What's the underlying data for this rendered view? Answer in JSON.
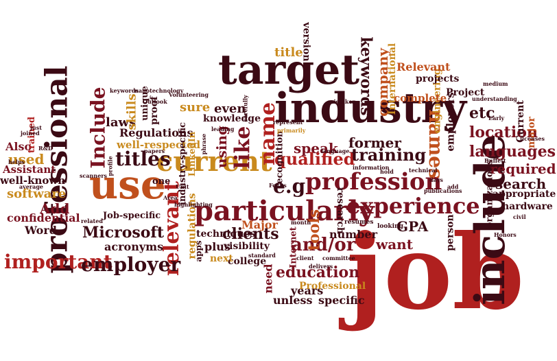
{
  "colors": {
    "dark_maroon": "#3b0a14",
    "maroon": "#7a1220",
    "red": "#b0201f",
    "rust": "#c0501d",
    "orange": "#c98a1e",
    "brown": "#8a4a1a"
  },
  "words": [
    {
      "id": "job",
      "text": "job",
      "color": "red"
    },
    {
      "id": "include-v",
      "text": "include",
      "color": "dark_maroon"
    },
    {
      "id": "industry",
      "text": "industry",
      "color": "dark_maroon"
    },
    {
      "id": "target",
      "text": "target",
      "color": "dark_maroon"
    },
    {
      "id": "professional",
      "text": "professional",
      "color": "dark_maroon"
    },
    {
      "id": "use",
      "text": "use",
      "color": "rust"
    },
    {
      "id": "current",
      "text": "current",
      "color": "orange"
    },
    {
      "id": "particularly",
      "text": "particularly",
      "color": "maroon"
    },
    {
      "id": "profession",
      "text": "profession",
      "color": "maroon"
    },
    {
      "id": "experience",
      "text": "experience",
      "color": "maroon"
    },
    {
      "id": "relevant-v",
      "text": "relevant",
      "color": "red"
    },
    {
      "id": "Include-v",
      "text": "Include",
      "color": "maroon"
    },
    {
      "id": "names",
      "text": "names",
      "color": "rust"
    },
    {
      "id": "like",
      "text": "like",
      "color": "maroon"
    },
    {
      "id": "name",
      "text": "name",
      "color": "red"
    },
    {
      "id": "titles",
      "text": "titles",
      "color": "dark_maroon"
    },
    {
      "id": "important",
      "text": "important",
      "color": "red"
    },
    {
      "id": "employer",
      "text": "employer",
      "color": "dark_maroon"
    },
    {
      "id": "qualified",
      "text": "qualified",
      "color": "red"
    },
    {
      "id": "training",
      "text": "training",
      "color": "dark_maroon"
    },
    {
      "id": "eg",
      "text": "e.g",
      "color": "dark_maroon"
    },
    {
      "id": "andor",
      "text": "and/or",
      "color": "maroon"
    },
    {
      "id": "education",
      "text": "education",
      "color": "maroon"
    },
    {
      "id": "tools",
      "text": "tools",
      "color": "rust"
    },
    {
      "id": "Microsoft",
      "text": "Microsoft",
      "color": "dark_maroon"
    },
    {
      "id": "clients",
      "text": "clients",
      "color": "dark_maroon"
    },
    {
      "id": "languages",
      "text": "languages",
      "color": "maroon"
    },
    {
      "id": "location",
      "text": "location",
      "color": "maroon"
    },
    {
      "id": "etc",
      "text": "etc",
      "color": "dark_maroon"
    },
    {
      "id": "required",
      "text": "required",
      "color": "maroon"
    },
    {
      "id": "search",
      "text": "search",
      "color": "dark_maroon"
    },
    {
      "id": "speak",
      "text": "speak",
      "color": "maroon"
    },
    {
      "id": "former",
      "text": "former",
      "color": "dark_maroon"
    },
    {
      "id": "keywords",
      "text": "keywords",
      "color": "dark_maroon"
    },
    {
      "id": "company",
      "text": "company",
      "color": "rust"
    },
    {
      "id": "Add",
      "text": "Add",
      "color": "maroon"
    },
    {
      "id": "used",
      "text": "used",
      "color": "orange"
    },
    {
      "id": "software",
      "text": "software",
      "color": "orange"
    },
    {
      "id": "confidential",
      "text": "confidential",
      "color": "maroon"
    },
    {
      "id": "Word",
      "text": "Word",
      "color": "dark_maroon"
    },
    {
      "id": "acronyms",
      "text": "acronyms",
      "color": "dark_maroon"
    },
    {
      "id": "Regulations",
      "text": "Regulations",
      "color": "dark_maroon"
    },
    {
      "id": "well-respected",
      "text": "well-respected",
      "color": "orange"
    },
    {
      "id": "laws",
      "text": "laws",
      "color": "dark_maroon"
    },
    {
      "id": "skills",
      "text": "skills",
      "color": "orange"
    },
    {
      "id": "sure",
      "text": "sure",
      "color": "orange"
    },
    {
      "id": "knowledge",
      "text": "knowledge",
      "color": "dark_maroon"
    },
    {
      "id": "even",
      "text": "even",
      "color": "dark_maroon"
    },
    {
      "id": "using",
      "text": "using",
      "color": "maroon"
    },
    {
      "id": "Major",
      "text": "Major",
      "color": "rust"
    },
    {
      "id": "techniques",
      "text": "techniques",
      "color": "dark_maroon"
    },
    {
      "id": "plus",
      "text": "plus",
      "color": "dark_maroon"
    },
    {
      "id": "visibility",
      "text": "visibility",
      "color": "dark_maroon"
    },
    {
      "id": "college",
      "text": "college",
      "color": "dark_maroon"
    },
    {
      "id": "next",
      "text": "next",
      "color": "orange"
    },
    {
      "id": "need",
      "text": "need",
      "color": "maroon"
    },
    {
      "id": "unless",
      "text": "unless",
      "color": "dark_maroon"
    },
    {
      "id": "years",
      "text": "years",
      "color": "dark_maroon"
    },
    {
      "id": "specific",
      "text": "specific",
      "color": "dark_maroon"
    },
    {
      "id": "Professional",
      "text": "Professional",
      "color": "orange"
    },
    {
      "id": "want",
      "text": "want",
      "color": "maroon"
    },
    {
      "id": "GPA",
      "text": "GPA",
      "color": "dark_maroon"
    },
    {
      "id": "number",
      "text": "number",
      "color": "dark_maroon"
    },
    {
      "id": "person",
      "text": "person",
      "color": "dark_maroon"
    },
    {
      "id": "hardware",
      "text": "hardware",
      "color": "dark_maroon"
    },
    {
      "id": "appropriate",
      "text": "appropriate",
      "color": "dark_maroon"
    },
    {
      "id": "organizations",
      "text": "organizations",
      "color": "dark_maroon"
    },
    {
      "id": "employers",
      "text": "employers",
      "color": "dark_maroon"
    },
    {
      "id": "engineering",
      "text": "engineering",
      "color": "orange"
    },
    {
      "id": "complete",
      "text": "complete",
      "color": "rust"
    },
    {
      "id": "projects",
      "text": "projects",
      "color": "dark_maroon"
    },
    {
      "id": "Project",
      "text": "Project",
      "color": "dark_maroon"
    },
    {
      "id": "Relevant",
      "text": "Relevant",
      "color": "rust"
    },
    {
      "id": "International",
      "text": "International",
      "color": "orange"
    },
    {
      "id": "title",
      "text": "title",
      "color": "orange"
    },
    {
      "id": "version",
      "text": "version",
      "color": "dark_maroon"
    },
    {
      "id": "Current",
      "text": "Current",
      "color": "dark_maroon"
    },
    {
      "id": "major",
      "text": "major",
      "color": "rust"
    },
    {
      "id": "Also",
      "text": "Also",
      "color": "maroon"
    },
    {
      "id": "Assistant",
      "text": "Assistant",
      "color": "maroon"
    },
    {
      "id": "well-known",
      "text": "well-known",
      "color": "dark_maroon"
    },
    {
      "id": "trained",
      "text": "trained",
      "color": "red"
    },
    {
      "id": "Job-specific",
      "text": "Job-specific",
      "color": "dark_maroon"
    },
    {
      "id": "industry-specific",
      "text": "industry-specific",
      "color": "dark_maroon"
    },
    {
      "id": "LinkedIn",
      "text": "LinkedIn",
      "color": "orange"
    },
    {
      "id": "regulations",
      "text": "regulations",
      "color": "orange"
    },
    {
      "id": "recognition",
      "text": "recognition",
      "color": "dark_maroon"
    },
    {
      "id": "research",
      "text": "research",
      "color": "dark_maroon"
    },
    {
      "id": "Internet",
      "text": "Internet",
      "color": "maroon"
    },
    {
      "id": "unique",
      "text": "unique",
      "color": "dark_maroon"
    },
    {
      "id": "proof",
      "text": "proof",
      "color": "dark_maroon"
    },
    {
      "id": "one",
      "text": "one",
      "color": "dark_maroon"
    },
    {
      "id": "apps",
      "text": "apps",
      "color": "dark_maroon"
    },
    {
      "id": "resumes",
      "text": "resumes",
      "color": "dark_maroon"
    },
    {
      "id": "looking",
      "text": "looking",
      "color": "dark_maroon"
    },
    {
      "id": "keywords2",
      "text": "keywords",
      "color": "dark_maroon"
    },
    {
      "id": "nanotechnology",
      "text": "nanotechnology",
      "color": "dark_maroon"
    },
    {
      "id": "Outlook",
      "text": "Outlook",
      "color": "dark_maroon"
    },
    {
      "id": "Volunteering",
      "text": "Volunteering",
      "color": "dark_maroon"
    },
    {
      "id": "carefully",
      "text": "carefully",
      "color": "dark_maroon"
    },
    {
      "id": "leading",
      "text": "leading",
      "color": "dark_maroon"
    },
    {
      "id": "phrase",
      "text": "phrase",
      "color": "dark_maroon"
    },
    {
      "id": "papers",
      "text": "papers",
      "color": "dark_maroon"
    },
    {
      "id": "profile",
      "text": "profile",
      "color": "dark_maroon"
    },
    {
      "id": "scanners",
      "text": "scanners",
      "color": "dark_maroon"
    },
    {
      "id": "average",
      "text": "average",
      "color": "dark_maroon"
    },
    {
      "id": "helps",
      "text": "helps",
      "color": "dark_maroon"
    },
    {
      "id": "related",
      "text": "related",
      "color": "dark_maroon"
    },
    {
      "id": "highlighting",
      "text": "highlighting",
      "color": "dark_maroon"
    },
    {
      "id": "Unit",
      "text": "Unit",
      "color": "dark_maroon"
    },
    {
      "id": "standard",
      "text": "standard",
      "color": "dark_maroon"
    },
    {
      "id": "month",
      "text": "month",
      "color": "dark_maroon"
    },
    {
      "id": "language",
      "text": "language",
      "color": "dark_maroon"
    },
    {
      "id": "information",
      "text": "information",
      "color": "dark_maroon"
    },
    {
      "id": "technical",
      "text": "technical",
      "color": "dark_maroon"
    },
    {
      "id": "publications",
      "text": "publications",
      "color": "dark_maroon"
    },
    {
      "id": "understanding",
      "text": "understanding",
      "color": "dark_maroon"
    },
    {
      "id": "licenses",
      "text": "licenses",
      "color": "dark_maroon"
    },
    {
      "id": "Buffett",
      "text": "Buffett",
      "color": "dark_maroon"
    },
    {
      "id": "civil",
      "text": "civil",
      "color": "dark_maroon"
    },
    {
      "id": "Honors",
      "text": "Honors",
      "color": "dark_maroon"
    },
    {
      "id": "medium",
      "text": "medium",
      "color": "dark_maroon"
    },
    {
      "id": "Early",
      "text": "Early",
      "color": "dark_maroon"
    },
    {
      "id": "days",
      "text": "days",
      "color": "dark_maroon"
    },
    {
      "id": "add",
      "text": "add",
      "color": "dark_maroon"
    },
    {
      "id": "committee",
      "text": "committee",
      "color": "dark_maroon"
    },
    {
      "id": "client",
      "text": "client",
      "color": "dark_maroon"
    },
    {
      "id": "delivers",
      "text": "delivers",
      "color": "dark_maroon"
    },
    {
      "id": "represent",
      "text": "represent",
      "color": "dark_maroon"
    },
    {
      "id": "primarily",
      "text": "primarily",
      "color": "orange"
    },
    {
      "id": "mistaken",
      "text": "mistaken",
      "color": "dark_maroon"
    },
    {
      "id": "Focus",
      "text": "Focus",
      "color": "dark_maroon"
    },
    {
      "id": "hold",
      "text": "hold",
      "color": "dark_maroon"
    },
    {
      "id": "Area",
      "text": "Area",
      "color": "dark_maroon"
    },
    {
      "id": "joined",
      "text": "joined",
      "color": "dark_maroon"
    },
    {
      "id": "just",
      "text": "just",
      "color": "dark_maroon"
    },
    {
      "id": "RandD",
      "text": "R&D",
      "color": "dark_maroon"
    }
  ]
}
